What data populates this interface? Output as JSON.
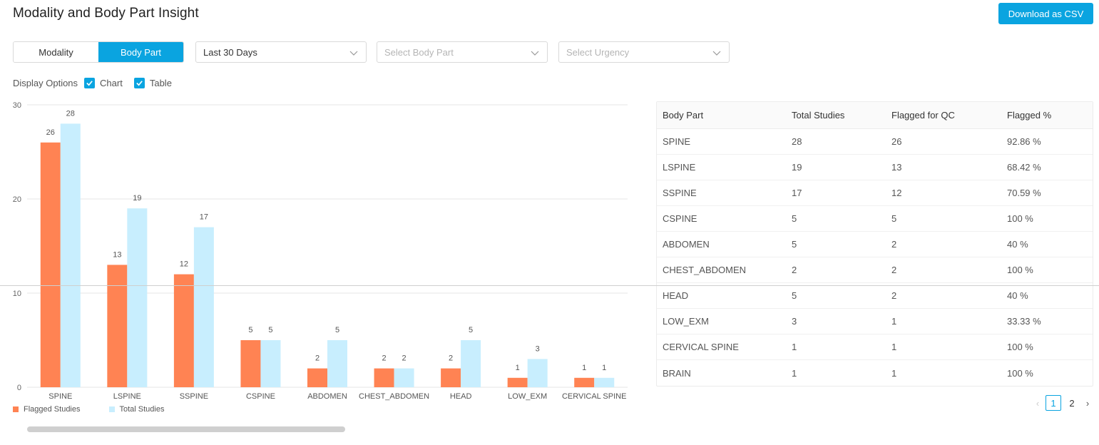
{
  "header": {
    "title": "Modality and Body Part Insight",
    "download_label": "Download as CSV"
  },
  "toggle": {
    "modality": "Modality",
    "body_part": "Body Part",
    "active": "body_part"
  },
  "filters": {
    "date_range": "Last 30 Days",
    "body_part_placeholder": "Select Body Part",
    "urgency_placeholder": "Select Urgency"
  },
  "display_options": {
    "label": "Display Options",
    "chart_label": "Chart",
    "chart_checked": true,
    "table_label": "Table",
    "table_checked": true
  },
  "colors": {
    "accent": "#0aa4e0",
    "flagged": "#ff8353",
    "total": "#c8eefe"
  },
  "chart_data": {
    "type": "bar",
    "categories": [
      "SPINE",
      "LSPINE",
      "SSPINE",
      "CSPINE",
      "ABDOMEN",
      "CHEST_ABDOMEN",
      "HEAD",
      "LOW_EXM",
      "CERVICAL SPINE"
    ],
    "series": [
      {
        "name": "Flagged Studies",
        "values": [
          26,
          13,
          12,
          5,
          2,
          2,
          2,
          1,
          1
        ],
        "color": "#ff8353"
      },
      {
        "name": "Total Studies",
        "values": [
          28,
          19,
          17,
          5,
          5,
          2,
          5,
          3,
          1
        ],
        "color": "#c8eefe"
      }
    ],
    "yticks": [
      0,
      10,
      20,
      30
    ],
    "ylim": [
      0,
      30
    ],
    "grid": true,
    "legend": "bottom-left"
  },
  "table": {
    "headers": [
      "Body Part",
      "Total Studies",
      "Flagged for QC",
      "Flagged %"
    ],
    "rows": [
      [
        "SPINE",
        "28",
        "26",
        "92.86 %"
      ],
      [
        "LSPINE",
        "19",
        "13",
        "68.42 %"
      ],
      [
        "SSPINE",
        "17",
        "12",
        "70.59 %"
      ],
      [
        "CSPINE",
        "5",
        "5",
        "100 %"
      ],
      [
        "ABDOMEN",
        "5",
        "2",
        "40 %"
      ],
      [
        "CHEST_ABDOMEN",
        "2",
        "2",
        "100 %"
      ],
      [
        "HEAD",
        "5",
        "2",
        "40 %"
      ],
      [
        "LOW_EXM",
        "3",
        "1",
        "33.33 %"
      ],
      [
        "CERVICAL SPINE",
        "1",
        "1",
        "100 %"
      ],
      [
        "BRAIN",
        "1",
        "1",
        "100 %"
      ]
    ]
  },
  "pagination": {
    "pages": [
      "1",
      "2"
    ],
    "current": "1"
  }
}
